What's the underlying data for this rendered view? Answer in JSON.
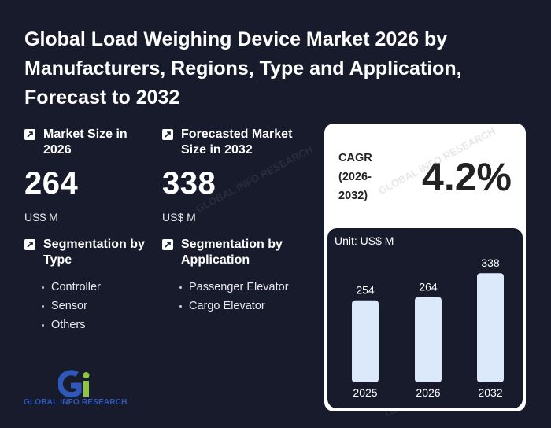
{
  "title": "Global Load Weighing Device Market 2026 by Manufacturers, Regions, Type and Application, Forecast to 2032",
  "market_size": {
    "label": "Market Size in 2026",
    "value": "264",
    "unit": "US$ M"
  },
  "forecast_size": {
    "label": "Forecasted Market Size in 2032",
    "value": "338",
    "unit": "US$ M"
  },
  "segmentation_type": {
    "label": "Segmentation by Type",
    "items": [
      "Controller",
      "Sensor",
      "Others"
    ]
  },
  "segmentation_application": {
    "label": "Segmentation by Application",
    "items": [
      "Passenger Elevator",
      "Cargo Elevator"
    ]
  },
  "cagr": {
    "label_line1": "CAGR",
    "label_line2": "(2026-",
    "label_line3": "2032)",
    "value": "4.2%"
  },
  "chart": {
    "unit_label": "Unit: US$ M"
  },
  "chart_data": {
    "type": "bar",
    "categories": [
      "2025",
      "2026",
      "2032"
    ],
    "values": [
      254,
      264,
      338
    ],
    "ylim": [
      0,
      380
    ],
    "grid": false,
    "colors": {
      "bar": "#dce9fb"
    }
  },
  "logo": {
    "text": "GLOBAL INFO RESEARCH",
    "mark": "Gi"
  },
  "watermark": "GLOBAL INFO RESEARCH",
  "colors": {
    "background": "#181b2c",
    "panel": "#ffffff",
    "bar": "#dce9fb",
    "logo_blue": "#2f58b8",
    "logo_green": "#8dc63f"
  },
  "icons": {
    "metric_icon": "arrow-up-right-icon"
  }
}
